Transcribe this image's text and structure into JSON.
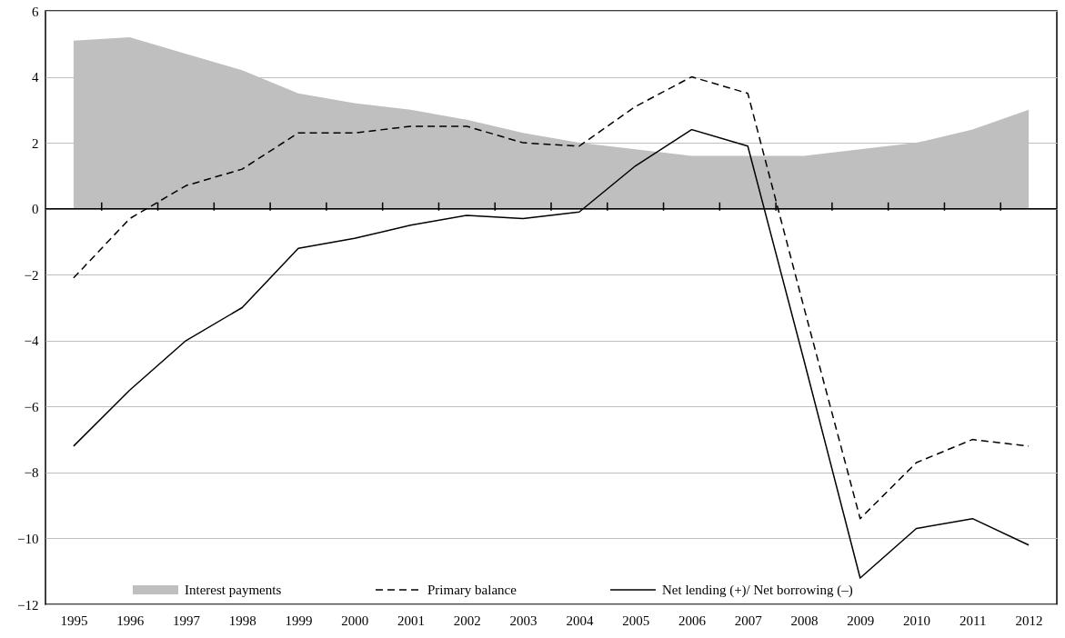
{
  "chart_data": {
    "type": "line",
    "categories": [
      "1995",
      "1996",
      "1997",
      "1998",
      "1999",
      "2000",
      "2001",
      "2002",
      "2003",
      "2004",
      "2005",
      "2006",
      "2007",
      "2008",
      "2009",
      "2010",
      "2011",
      "2012"
    ],
    "series": [
      {
        "name": "Interest payments",
        "type": "area",
        "color": "#bfbfbf",
        "values": [
          5.1,
          5.2,
          4.7,
          4.2,
          3.5,
          3.2,
          3.0,
          2.7,
          2.3,
          2.0,
          1.8,
          1.6,
          1.6,
          1.6,
          1.8,
          2.0,
          2.4,
          3.0
        ]
      },
      {
        "name": "Primary balance",
        "type": "line",
        "line_style": "dashed",
        "color": "#000000",
        "values": [
          -2.1,
          -0.3,
          0.7,
          1.2,
          2.3,
          2.3,
          2.5,
          2.5,
          2.0,
          1.9,
          3.1,
          4.0,
          3.5,
          -3.0,
          -9.4,
          -7.7,
          -7.0,
          -7.2
        ]
      },
      {
        "name": "Net lending (+)/ Net borrowing (–)",
        "type": "line",
        "line_style": "solid",
        "color": "#000000",
        "values": [
          -7.2,
          -5.5,
          -4.0,
          -3.0,
          -1.2,
          -0.9,
          -0.5,
          -0.2,
          -0.3,
          -0.1,
          1.3,
          2.4,
          1.9,
          -4.6,
          -11.2,
          -9.7,
          -9.4,
          -10.2
        ]
      }
    ],
    "ylim": [
      -12,
      6
    ],
    "yticks": [
      -12,
      -10,
      -8,
      -6,
      -4,
      -2,
      0,
      2,
      4,
      6
    ],
    "ref_lines": [
      {
        "axis": "y",
        "value": 0,
        "color": "#000000"
      }
    ],
    "grid": "y",
    "legend": "bottom"
  }
}
